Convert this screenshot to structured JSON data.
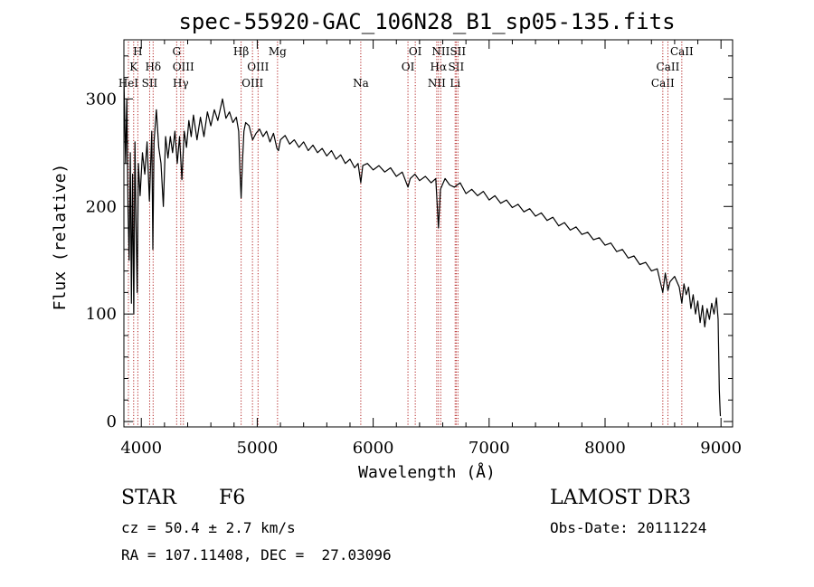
{
  "chart_data": {
    "type": "line",
    "title": "spec-55920-GAC_106N28_B1_sp05-135.fits",
    "xlabel": "Wavelength (Å)",
    "ylabel": "Flux (relative)",
    "xlim": [
      3850,
      9100
    ],
    "ylim": [
      -5,
      355
    ],
    "x_ticks": [
      4000,
      5000,
      6000,
      7000,
      8000,
      9000
    ],
    "y_ticks": [
      0,
      100,
      200,
      300
    ],
    "series": [
      {
        "name": "flux",
        "points": [
          [
            3850,
            320
          ],
          [
            3865,
            240
          ],
          [
            3875,
            300
          ],
          [
            3885,
            200
          ],
          [
            3895,
            150
          ],
          [
            3905,
            250
          ],
          [
            3915,
            110
          ],
          [
            3925,
            230
          ],
          [
            3935,
            100
          ],
          [
            3945,
            260
          ],
          [
            3955,
            180
          ],
          [
            3965,
            120
          ],
          [
            3975,
            240
          ],
          [
            3990,
            210
          ],
          [
            4010,
            250
          ],
          [
            4030,
            230
          ],
          [
            4050,
            260
          ],
          [
            4070,
            205
          ],
          [
            4090,
            270
          ],
          [
            4100,
            160
          ],
          [
            4110,
            260
          ],
          [
            4130,
            290
          ],
          [
            4150,
            255
          ],
          [
            4170,
            240
          ],
          [
            4190,
            200
          ],
          [
            4210,
            265
          ],
          [
            4230,
            245
          ],
          [
            4250,
            265
          ],
          [
            4270,
            250
          ],
          [
            4290,
            270
          ],
          [
            4310,
            240
          ],
          [
            4330,
            265
          ],
          [
            4350,
            225
          ],
          [
            4370,
            270
          ],
          [
            4390,
            255
          ],
          [
            4410,
            280
          ],
          [
            4430,
            265
          ],
          [
            4450,
            285
          ],
          [
            4480,
            262
          ],
          [
            4510,
            283
          ],
          [
            4540,
            265
          ],
          [
            4570,
            288
          ],
          [
            4600,
            275
          ],
          [
            4630,
            290
          ],
          [
            4660,
            280
          ],
          [
            4700,
            300
          ],
          [
            4730,
            282
          ],
          [
            4760,
            288
          ],
          [
            4790,
            278
          ],
          [
            4820,
            283
          ],
          [
            4840,
            270
          ],
          [
            4850,
            235
          ],
          [
            4861,
            208
          ],
          [
            4872,
            240
          ],
          [
            4885,
            270
          ],
          [
            4900,
            278
          ],
          [
            4930,
            275
          ],
          [
            4960,
            262
          ],
          [
            4990,
            268
          ],
          [
            5020,
            272
          ],
          [
            5050,
            265
          ],
          [
            5080,
            270
          ],
          [
            5110,
            260
          ],
          [
            5140,
            268
          ],
          [
            5170,
            254
          ],
          [
            5183,
            252
          ],
          [
            5200,
            262
          ],
          [
            5240,
            266
          ],
          [
            5280,
            258
          ],
          [
            5320,
            262
          ],
          [
            5360,
            255
          ],
          [
            5400,
            260
          ],
          [
            5440,
            252
          ],
          [
            5480,
            257
          ],
          [
            5520,
            250
          ],
          [
            5560,
            254
          ],
          [
            5600,
            247
          ],
          [
            5640,
            252
          ],
          [
            5680,
            244
          ],
          [
            5720,
            248
          ],
          [
            5760,
            240
          ],
          [
            5800,
            244
          ],
          [
            5840,
            236
          ],
          [
            5870,
            240
          ],
          [
            5893,
            222
          ],
          [
            5910,
            238
          ],
          [
            5950,
            240
          ],
          [
            6000,
            234
          ],
          [
            6050,
            238
          ],
          [
            6100,
            232
          ],
          [
            6150,
            236
          ],
          [
            6200,
            228
          ],
          [
            6250,
            232
          ],
          [
            6300,
            218
          ],
          [
            6320,
            226
          ],
          [
            6360,
            230
          ],
          [
            6400,
            224
          ],
          [
            6450,
            228
          ],
          [
            6500,
            222
          ],
          [
            6540,
            226
          ],
          [
            6563,
            180
          ],
          [
            6580,
            216
          ],
          [
            6620,
            226
          ],
          [
            6660,
            220
          ],
          [
            6700,
            218
          ],
          [
            6750,
            222
          ],
          [
            6800,
            212
          ],
          [
            6850,
            216
          ],
          [
            6900,
            210
          ],
          [
            6950,
            214
          ],
          [
            7000,
            206
          ],
          [
            7050,
            210
          ],
          [
            7100,
            203
          ],
          [
            7150,
            206
          ],
          [
            7200,
            199
          ],
          [
            7250,
            202
          ],
          [
            7300,
            195
          ],
          [
            7350,
            198
          ],
          [
            7400,
            191
          ],
          [
            7450,
            194
          ],
          [
            7500,
            187
          ],
          [
            7550,
            190
          ],
          [
            7600,
            182
          ],
          [
            7650,
            185
          ],
          [
            7700,
            178
          ],
          [
            7750,
            181
          ],
          [
            7800,
            174
          ],
          [
            7850,
            176
          ],
          [
            7900,
            169
          ],
          [
            7950,
            171
          ],
          [
            8000,
            164
          ],
          [
            8050,
            166
          ],
          [
            8100,
            158
          ],
          [
            8150,
            160
          ],
          [
            8200,
            152
          ],
          [
            8250,
            154
          ],
          [
            8300,
            146
          ],
          [
            8350,
            148
          ],
          [
            8400,
            140
          ],
          [
            8450,
            142
          ],
          [
            8498,
            120
          ],
          [
            8520,
            138
          ],
          [
            8542,
            122
          ],
          [
            8560,
            130
          ],
          [
            8600,
            135
          ],
          [
            8640,
            125
          ],
          [
            8662,
            110
          ],
          [
            8680,
            128
          ],
          [
            8700,
            118
          ],
          [
            8720,
            125
          ],
          [
            8740,
            105
          ],
          [
            8760,
            118
          ],
          [
            8780,
            100
          ],
          [
            8800,
            112
          ],
          [
            8820,
            92
          ],
          [
            8840,
            108
          ],
          [
            8860,
            88
          ],
          [
            8880,
            105
          ],
          [
            8900,
            95
          ],
          [
            8920,
            110
          ],
          [
            8940,
            100
          ],
          [
            8960,
            115
          ],
          [
            8975,
            95
          ],
          [
            8985,
            30
          ],
          [
            8992,
            10
          ],
          [
            8995,
            5
          ]
        ]
      }
    ],
    "line_markers": [
      {
        "wavelength": 3889,
        "label": "HeI",
        "row": 3
      },
      {
        "wavelength": 3934,
        "label": "K",
        "row": 2
      },
      {
        "wavelength": 3970,
        "label": "H",
        "row": 1
      },
      {
        "wavelength": 4072,
        "label": "SII",
        "row": 3
      },
      {
        "wavelength": 4102,
        "label": "Hδ",
        "row": 2
      },
      {
        "wavelength": 4305,
        "label": "G",
        "row": 1
      },
      {
        "wavelength": 4340,
        "label": "Hγ",
        "row": 3
      },
      {
        "wavelength": 4363,
        "label": "OIII",
        "row": 2
      },
      {
        "wavelength": 4861,
        "label": "Hβ",
        "row": 1
      },
      {
        "wavelength": 4959,
        "label": "OIII",
        "row": 3
      },
      {
        "wavelength": 5007,
        "label": "OIII",
        "row": 2
      },
      {
        "wavelength": 5175,
        "label": "Mg",
        "row": 1
      },
      {
        "wavelength": 5893,
        "label": "Na",
        "row": 3
      },
      {
        "wavelength": 6300,
        "label": "OI",
        "row": 2
      },
      {
        "wavelength": 6363,
        "label": "OI",
        "row": 1
      },
      {
        "wavelength": 6548,
        "label": "NII",
        "row": 3
      },
      {
        "wavelength": 6563,
        "label": "Hα",
        "row": 2
      },
      {
        "wavelength": 6583,
        "label": "NII",
        "row": 1
      },
      {
        "wavelength": 6707,
        "label": "Li",
        "row": 3
      },
      {
        "wavelength": 6716,
        "label": "SII",
        "row": 2
      },
      {
        "wavelength": 6731,
        "label": "SII",
        "row": 1
      },
      {
        "wavelength": 8498,
        "label": "CaII",
        "row": 3
      },
      {
        "wavelength": 8542,
        "label": "CaII",
        "row": 2
      },
      {
        "wavelength": 8662,
        "label": "CaII",
        "row": 1
      }
    ],
    "colors": {
      "line": "#000000",
      "marker": "#b22222",
      "axis": "#000000"
    }
  },
  "info": {
    "class": "STAR",
    "subclass": "F6",
    "survey": "LAMOST DR3",
    "cz": "cz = 50.4 ± 2.7 km/s",
    "obs_date": "Obs-Date: 20111224",
    "coords": "RA = 107.11408, DEC =  27.03096"
  }
}
